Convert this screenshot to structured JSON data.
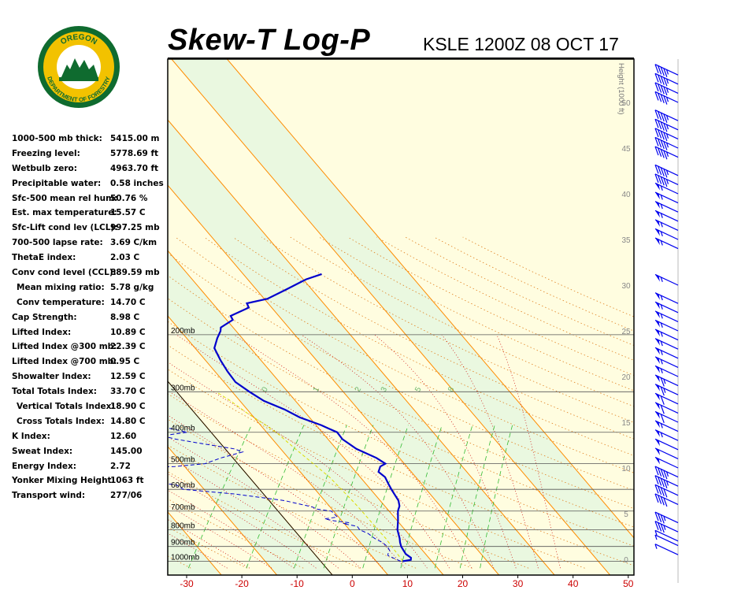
{
  "header": {
    "title": "Skew-T Log-P",
    "station_time": "KSLE 1200Z 08 OCT 17",
    "logo_top_text": "OREGON",
    "logo_bottom_text": "DEPARTMENT OF FORESTRY"
  },
  "indices": [
    {
      "label": "1000-500 mb thick:",
      "value": "5415.00 m"
    },
    {
      "label": "Freezing level:",
      "value": "5778.69 ft"
    },
    {
      "label": "Wetbulb zero:",
      "value": "4963.70 ft"
    },
    {
      "label": "Precipitable water:",
      "value": "0.58 inches"
    },
    {
      "label": "Sfc-500 mean rel hum:",
      "value": "50.76 %"
    },
    {
      "label": "Est. max temperature:",
      "value": "15.57 C"
    },
    {
      "label": "Sfc-Lift cond lev (LCL):",
      "value": "997.25 mb"
    },
    {
      "label": "700-500 lapse rate:",
      "value": "3.69 C/km"
    },
    {
      "label": "ThetaE index:",
      "value": "2.03 C"
    },
    {
      "label": "Conv cond level (CCL):",
      "value": "889.59 mb"
    },
    {
      "label": "Mean mixing ratio:",
      "value": "5.78 g/kg",
      "indent": true
    },
    {
      "label": "Conv temperature:",
      "value": "14.70 C",
      "indent": true
    },
    {
      "label": "Cap Strength:",
      "value": "8.98 C"
    },
    {
      "label": "Lifted Index:",
      "value": "10.89 C"
    },
    {
      "label": "Lifted Index @300 mb:",
      "value": "22.39 C"
    },
    {
      "label": "Lifted Index @700 mb:",
      "value": "0.95 C"
    },
    {
      "label": "Showalter Index:",
      "value": "12.59 C"
    },
    {
      "label": "Total Totals Index:",
      "value": "33.70 C"
    },
    {
      "label": "Vertical Totals Index:",
      "value": "18.90 C",
      "indent": true
    },
    {
      "label": "Cross Totals Index:",
      "value": "14.80 C",
      "indent": true
    },
    {
      "label": "K Index:",
      "value": "12.60"
    },
    {
      "label": "Sweat Index:",
      "value": "145.00"
    },
    {
      "label": "Energy Index:",
      "value": "2.72"
    },
    {
      "label": "Yonker Mixing Height:",
      "value": "1063 ft"
    },
    {
      "label": "Transport wind:",
      "value": "277/06"
    }
  ],
  "chart_data": {
    "type": "line",
    "chart_kind": "skew-t log-p diagram",
    "temperature_axis": {
      "range_c": [
        -32,
        52
      ],
      "ticks": [
        -30,
        -20,
        -10,
        0,
        10,
        20,
        30,
        40,
        50
      ],
      "tick_color": "#cc0000"
    },
    "pressure_axis": {
      "scale": "log",
      "range_mb": [
        1050,
        100
      ],
      "levels_mb": [
        1000,
        900,
        800,
        700,
        600,
        500,
        400,
        300,
        200
      ],
      "labels": [
        "1000mb",
        "900mb",
        "800mb",
        "700mb",
        "600mb",
        "500mb",
        "400mb",
        "300mb",
        "200mb"
      ]
    },
    "height_axis": {
      "title": "Height (1000 ft)",
      "ticks": [
        0,
        5,
        10,
        15,
        20,
        25,
        30,
        35,
        40,
        45,
        50
      ]
    },
    "mixing_ratio_labels": [
      "0",
      "1",
      "2",
      "3",
      "5",
      "8"
    ],
    "colors": {
      "isotherm": "#ff8c00",
      "dry_adiabat": "#e08020",
      "moist_adiabat": "#cc0000",
      "mixing_ratio": "#33bb33",
      "temperature": "#0000cc",
      "dewpoint": "#0000cc",
      "parcel": "#dddd00",
      "wind_barb": "#0000ee",
      "band_light": "#fffde0",
      "band_dark": "#eaf8e0"
    },
    "series": [
      {
        "kind": "temperature",
        "style": "solid",
        "p": [
          1000,
          990,
          975,
          950,
          925,
          900,
          875,
          850,
          800,
          750,
          700,
          675,
          650,
          600,
          575,
          550,
          530,
          510,
          500,
          480,
          450,
          420,
          400,
          390,
          380,
          360,
          340,
          320,
          300,
          280,
          260,
          240,
          220,
          205,
          195,
          190,
          180,
          175,
          165,
          160,
          155,
          145,
          135,
          130
        ],
        "t": [
          10.5,
          11.8,
          11.5,
          10.0,
          9.0,
          8.0,
          7.2,
          6.5,
          4.8,
          3.5,
          2.0,
          1.5,
          0.5,
          -2.5,
          -4.0,
          -5.5,
          -7.5,
          -8.0,
          -7.5,
          -10.0,
          -15.0,
          -19.0,
          -21.0,
          -23.0,
          -25.0,
          -30.0,
          -34.0,
          -39.0,
          -43.0,
          -47.0,
          -50.0,
          -53.0,
          -56.0,
          -57.0,
          -57.5,
          -58.0,
          -57.0,
          -58.0,
          -56.0,
          -57.0,
          -54.0,
          -52.0,
          -50.0,
          -48.0
        ]
      },
      {
        "kind": "dewpoint",
        "style": "dashed",
        "p": [
          1000,
          985,
          960,
          950,
          925,
          900,
          875,
          850,
          820,
          800,
          780,
          765,
          760,
          750,
          740,
          730,
          700,
          690,
          680,
          650,
          620,
          600,
          580,
          560,
          540,
          520,
          510,
          500,
          480,
          460,
          450,
          430,
          420,
          410,
          400,
          380,
          360,
          340,
          320,
          300,
          280,
          260,
          240,
          230,
          210,
          200,
          190,
          180,
          170,
          160,
          150,
          140,
          130
        ],
        "t": [
          10.2,
          9.0,
          7.0,
          6.8,
          6.5,
          5.5,
          4.0,
          2.0,
          0.0,
          -2.0,
          -3.0,
          -6.0,
          -5.0,
          -8.0,
          -10.0,
          -8.0,
          -10.0,
          -13.0,
          -14.0,
          -20.0,
          -30.0,
          -40.0,
          -42.0,
          -55.0,
          -60.0,
          -56.0,
          -45.0,
          -40.0,
          -38.0,
          -35.0,
          -37.0,
          -45.0,
          -49.0,
          -52.0,
          -48.0,
          -55.0,
          -58.0,
          -60.0,
          -60.0,
          -63.0,
          -64.0,
          -66.0,
          -68.0,
          -70.0,
          -68.0,
          -70.0,
          -75.0,
          -78.0,
          -82.0,
          -85.0,
          -87.0,
          -86.0,
          -85.0
        ]
      },
      {
        "kind": "parcel",
        "style": "dashed",
        "p": [
          1000,
          990,
          950,
          900,
          850,
          800,
          750,
          700,
          650,
          600,
          550,
          500,
          450,
          420,
          400,
          380,
          350,
          320,
          300
        ],
        "t": [
          10.5,
          10.2,
          8.5,
          6.3,
          4.0,
          1.3,
          -1.5,
          -4.5,
          -7.8,
          -11.5,
          -15.5,
          -20.5,
          -26.0,
          -29.5,
          -32.0,
          -35.0,
          -40.0,
          -45.0,
          -49.0
        ]
      }
    ],
    "wind_barbs_height_kft": [
      0.5,
      1.5,
      2.0,
      3.0,
      4.0,
      6.0,
      7.0,
      8.0,
      9.0,
      10.0,
      11.0,
      12.0,
      13.0,
      14.0,
      15.0,
      16.0,
      17.0,
      18.0,
      19.0,
      20.0,
      21.0,
      22.0,
      23.0,
      24.0,
      25.0,
      26.0,
      27.0,
      28.0,
      30.0,
      34.0,
      35.0,
      36.0,
      37.0,
      38.0,
      39.0,
      40.0,
      41.0,
      42.0,
      44.0,
      45.0,
      46.0,
      47.0,
      48.0,
      50.0,
      51.0,
      52.0,
      53.0,
      56.0
    ]
  }
}
